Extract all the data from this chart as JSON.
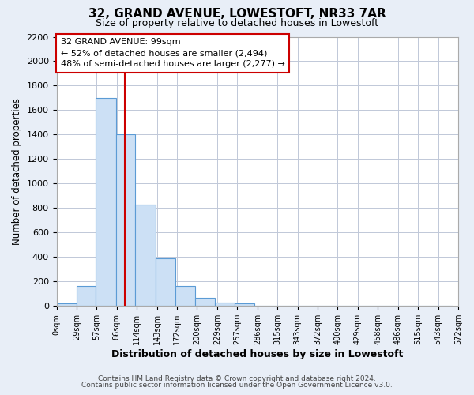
{
  "title": "32, GRAND AVENUE, LOWESTOFT, NR33 7AR",
  "subtitle": "Size of property relative to detached houses in Lowestoft",
  "xlabel": "Distribution of detached houses by size in Lowestoft",
  "ylabel": "Number of detached properties",
  "bar_heights": [
    20,
    160,
    1700,
    1400,
    830,
    390,
    160,
    65,
    30,
    20,
    0,
    0,
    0,
    0,
    0,
    0,
    0,
    0,
    0
  ],
  "bin_edges": [
    0,
    29,
    57,
    86,
    114,
    143,
    172,
    200,
    229,
    257,
    286,
    315,
    343,
    372,
    400,
    429,
    458,
    486,
    515,
    543
  ],
  "tick_labels": [
    "0sqm",
    "29sqm",
    "57sqm",
    "86sqm",
    "114sqm",
    "143sqm",
    "172sqm",
    "200sqm",
    "229sqm",
    "257sqm",
    "286sqm",
    "315sqm",
    "343sqm",
    "372sqm",
    "400sqm",
    "429sqm",
    "458sqm",
    "486sqm",
    "515sqm",
    "543sqm",
    "572sqm"
  ],
  "bar_color": "#cce0f5",
  "bar_edge_color": "#5b9bd5",
  "vline_x": 99,
  "vline_color": "#cc0000",
  "ylim": [
    0,
    2200
  ],
  "yticks": [
    0,
    200,
    400,
    600,
    800,
    1000,
    1200,
    1400,
    1600,
    1800,
    2000,
    2200
  ],
  "annotation_title": "32 GRAND AVENUE: 99sqm",
  "annotation_line1": "← 52% of detached houses are smaller (2,494)",
  "annotation_line2": "48% of semi-detached houses are larger (2,277) →",
  "annotation_box_color": "#ffffff",
  "annotation_box_edge": "#cc0000",
  "footer_line1": "Contains HM Land Registry data © Crown copyright and database right 2024.",
  "footer_line2": "Contains public sector information licensed under the Open Government Licence v3.0.",
  "bg_color": "#e8eef7",
  "plot_bg_color": "#ffffff",
  "grid_color": "#c0c8d8"
}
